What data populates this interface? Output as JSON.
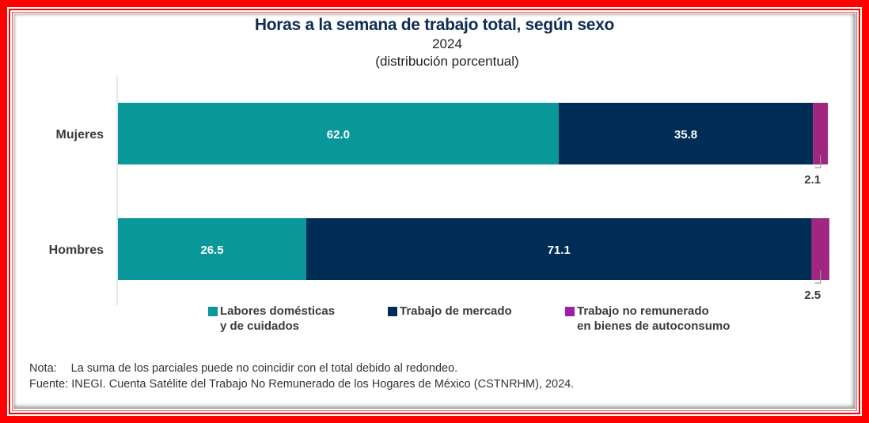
{
  "chart_data": {
    "type": "bar",
    "orientation": "horizontal",
    "stacked": true,
    "title": "Horas a la semana de trabajo total, según sexo",
    "subtitle": "2024",
    "unit_note": "(distribución porcentual)",
    "categories": [
      "Mujeres",
      "Hombres"
    ],
    "series": [
      {
        "name": "Labores domésticas y de cuidados",
        "legend_lines": [
          "Labores domésticas",
          "y de cuidados"
        ],
        "color": "#0a979a",
        "values": [
          62.0,
          26.5
        ],
        "labels": [
          "62.0",
          "26.5"
        ]
      },
      {
        "name": "Trabajo de mercado",
        "legend_lines": [
          "Trabajo de mercado",
          ""
        ],
        "color": "#002d55",
        "values": [
          35.8,
          71.1
        ],
        "labels": [
          "35.8",
          "71.1"
        ]
      },
      {
        "name": "Trabajo no remunerado en bienes de autoconsumo",
        "legend_lines": [
          "Trabajo no remunerado",
          "en bienes de autoconsumo"
        ],
        "color": "#a0267f",
        "values": [
          2.1,
          2.5
        ],
        "labels": [
          "2.1",
          "2.5"
        ]
      }
    ],
    "xlim": [
      0,
      100
    ],
    "grid": false,
    "legend_position": "bottom"
  },
  "notes": {
    "nota_label": "Nota:",
    "nota_text": "La suma de los parciales puede no coincidir con el total debido al redondeo.",
    "fuente_label": "Fuente:",
    "fuente_text": "INEGI. Cuenta Satélite del Trabajo No Remunerado de los Hogares de México (CSTNRHM), 2024."
  }
}
